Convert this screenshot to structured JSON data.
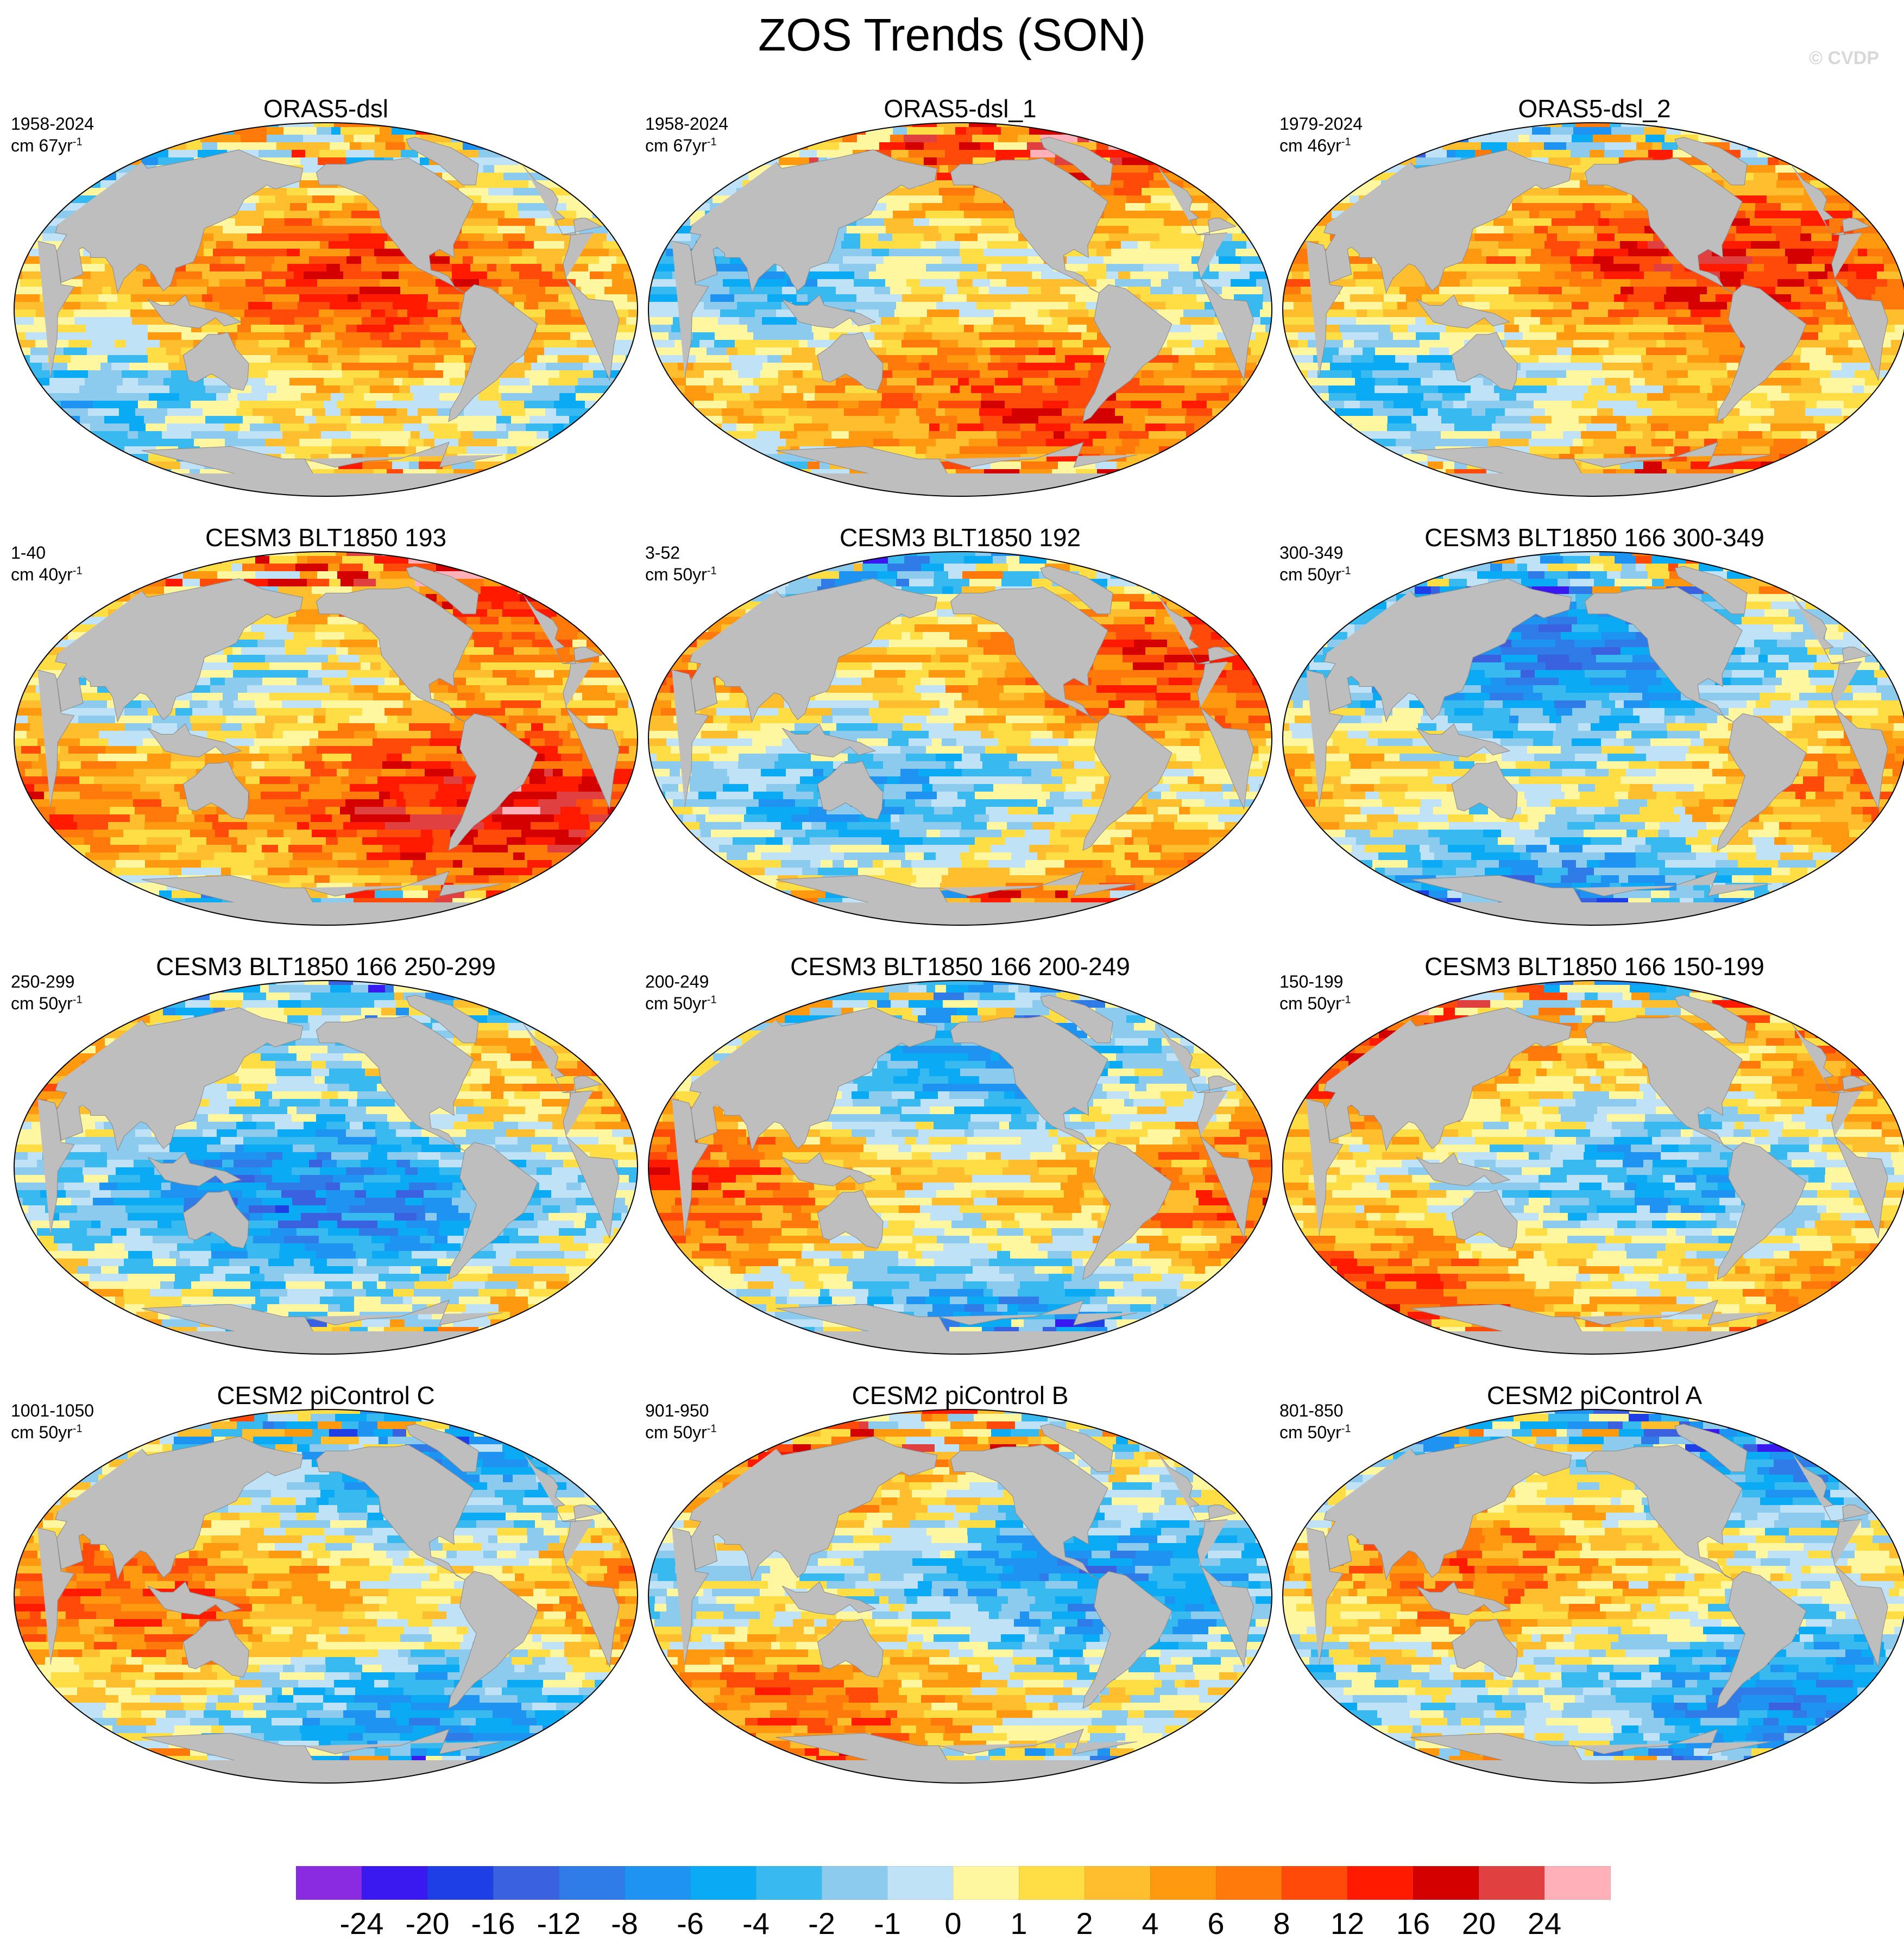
{
  "title": "ZOS Trends (SON)",
  "watermark": "© CVDP",
  "panels": [
    {
      "title": "ORAS5-dsl",
      "period": "1958-2024",
      "units_base": "cm 67yr",
      "units_exp": "-1"
    },
    {
      "title": "ORAS5-dsl_1",
      "period": "1958-2024",
      "units_base": "cm 67yr",
      "units_exp": "-1"
    },
    {
      "title": "ORAS5-dsl_2",
      "period": "1979-2024",
      "units_base": "cm 46yr",
      "units_exp": "-1"
    },
    {
      "title": "CESM3 BLT1850 193",
      "period": "1-40",
      "units_base": "cm 40yr",
      "units_exp": "-1"
    },
    {
      "title": "CESM3 BLT1850 192",
      "period": "3-52",
      "units_base": "cm 50yr",
      "units_exp": "-1"
    },
    {
      "title": "CESM3 BLT1850 166 300-349",
      "period": "300-349",
      "units_base": "cm 50yr",
      "units_exp": "-1"
    },
    {
      "title": "CESM3 BLT1850 166 250-299",
      "period": "250-299",
      "units_base": "cm 50yr",
      "units_exp": "-1"
    },
    {
      "title": "CESM3 BLT1850 166 200-249",
      "period": "200-249",
      "units_base": "cm 50yr",
      "units_exp": "-1"
    },
    {
      "title": "CESM3 BLT1850 166 150-199",
      "period": "150-199",
      "units_base": "cm 50yr",
      "units_exp": "-1"
    },
    {
      "title": "CESM2 piControl C",
      "period": "1001-1050",
      "units_base": "cm 50yr",
      "units_exp": "-1"
    },
    {
      "title": "CESM2 piControl B",
      "period": "901-950",
      "units_base": "cm 50yr",
      "units_exp": "-1"
    },
    {
      "title": "CESM2 piControl A",
      "period": "801-850",
      "units_base": "cm 50yr",
      "units_exp": "-1"
    }
  ],
  "colorbar": {
    "labels": [
      "-24",
      "-20",
      "-16",
      "-12",
      "-8",
      "-6",
      "-4",
      "-2",
      "-1",
      "0",
      "1",
      "2",
      "4",
      "6",
      "8",
      "12",
      "16",
      "20",
      "24"
    ],
    "colors": [
      "#8a2be2",
      "#3a19f0",
      "#1e3ee6",
      "#3a62e0",
      "#2f7be8",
      "#1f93f2",
      "#0aaaf5",
      "#38b9ef",
      "#8ccbee",
      "#bfe2f6",
      "#fff7a0",
      "#ffde45",
      "#ffbe2e",
      "#ff9a10",
      "#ff7a0a",
      "#ff4a0a",
      "#ff1a00",
      "#d40000",
      "#e04040",
      "#ffb0b8"
    ]
  },
  "colors": {
    "land": "#bebebe",
    "ocean_neutral": "#bfe2f6"
  }
}
